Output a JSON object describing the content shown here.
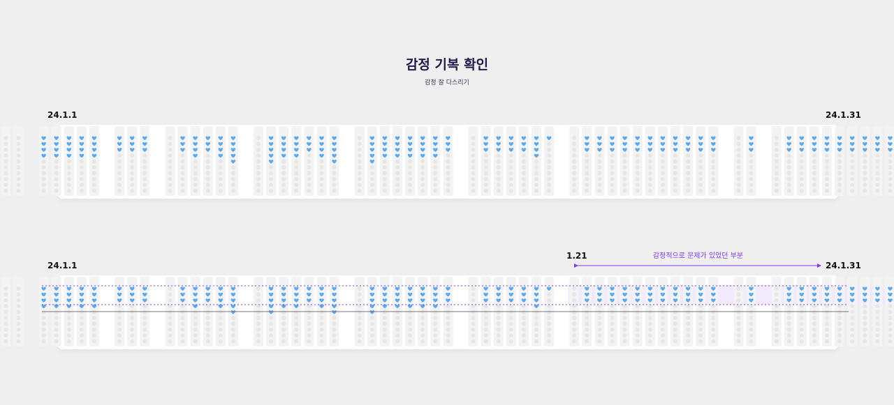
{
  "header": {
    "title": "감정 기복 확인",
    "subtitle": "감정 잘 다스리기"
  },
  "panels": [
    {
      "start_label": "24.1.1",
      "end_label": "24.1.31"
    },
    {
      "start_label": "24.1.1",
      "end_label": "24.1.31",
      "marker_label": "1.21",
      "annotation": "감정적으로 문제가 있었던 부분"
    }
  ],
  "colors": {
    "background": "#efefef",
    "panel": "#ffffff",
    "heart": "#5aa9ea",
    "empty_dot": "#e6e6e6",
    "column": "#f3f3f3",
    "highlight": "#efe7fd",
    "accent": "#7c3aed",
    "baseline": "#777777"
  },
  "chart_data": {
    "type": "dot-matrix",
    "icon": "heart-icon",
    "slots_per_entry": 10,
    "days": [
      {
        "day": 1,
        "entries": [
          0,
          0,
          0
        ]
      },
      {
        "day": 2,
        "entries": [
          4,
          4,
          4,
          4,
          4
        ]
      },
      {
        "day": 3,
        "entries": [
          3,
          3,
          3
        ]
      },
      {
        "day": 4,
        "entries": [
          0,
          3,
          4,
          3,
          4,
          5
        ]
      },
      {
        "day": 5,
        "entries": [
          0,
          5,
          4,
          4,
          3,
          4,
          5
        ]
      },
      {
        "day": 6,
        "entries": [
          0,
          5,
          4,
          4,
          4,
          4,
          4,
          3
        ]
      },
      {
        "day": 7,
        "entries": [
          0,
          3,
          3,
          3,
          3,
          4,
          1
        ]
      },
      {
        "day": 8,
        "entries": [
          0,
          3,
          3,
          3,
          3,
          3,
          3,
          3,
          3,
          3,
          3,
          3
        ]
      },
      {
        "day": 9,
        "entries": [
          0,
          3
        ]
      },
      {
        "day": 10,
        "entries": [
          0,
          3,
          3,
          3,
          3,
          3,
          3,
          3,
          3,
          3,
          6
        ]
      }
    ],
    "highlight": {
      "from_day": 8,
      "to_day": 10,
      "from_label": "1.21",
      "to_label": "24.1.31",
      "text": "감정적으로 문제가 있었던 부분"
    }
  }
}
